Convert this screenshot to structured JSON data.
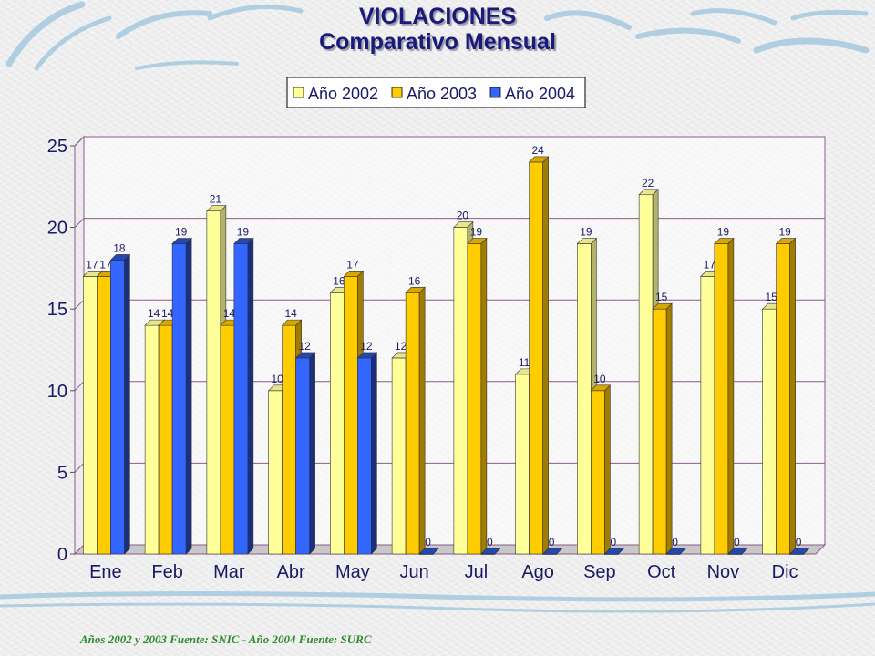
{
  "title": "VIOLACIONES",
  "subtitle": "Comparativo Mensual",
  "footer": "Años 2002 y 2003 Fuente: SNIC - Año 2004 Fuente: SURC",
  "chart_data": {
    "type": "bar",
    "title": "VIOLACIONES",
    "subtitle": "Comparativo Mensual",
    "categories": [
      "Ene",
      "Feb",
      "Mar",
      "Abr",
      "May",
      "Jun",
      "Jul",
      "Ago",
      "Sep",
      "Oct",
      "Nov",
      "Dic"
    ],
    "series": [
      {
        "name": "Año 2002",
        "color": "#ffff99",
        "side": "#b3b36b",
        "top": "#e6e68a",
        "values": [
          17,
          14,
          21,
          10,
          16,
          12,
          20,
          11,
          19,
          22,
          17,
          15
        ]
      },
      {
        "name": "Año 2003",
        "color": "#ffcc00",
        "side": "#a07c00",
        "top": "#d9a800",
        "values": [
          17,
          14,
          14,
          14,
          17,
          16,
          19,
          24,
          10,
          15,
          19,
          19
        ]
      },
      {
        "name": "Año 2004",
        "color": "#3366ff",
        "side": "#1a2f80",
        "top": "#2447b3",
        "values": [
          18,
          19,
          19,
          12,
          12,
          0,
          0,
          0,
          0,
          0,
          0,
          0
        ]
      }
    ],
    "yticks": [
      0,
      5,
      10,
      15,
      20,
      25
    ],
    "ylim": [
      0,
      25
    ],
    "grid": true,
    "legend_position": "top"
  }
}
